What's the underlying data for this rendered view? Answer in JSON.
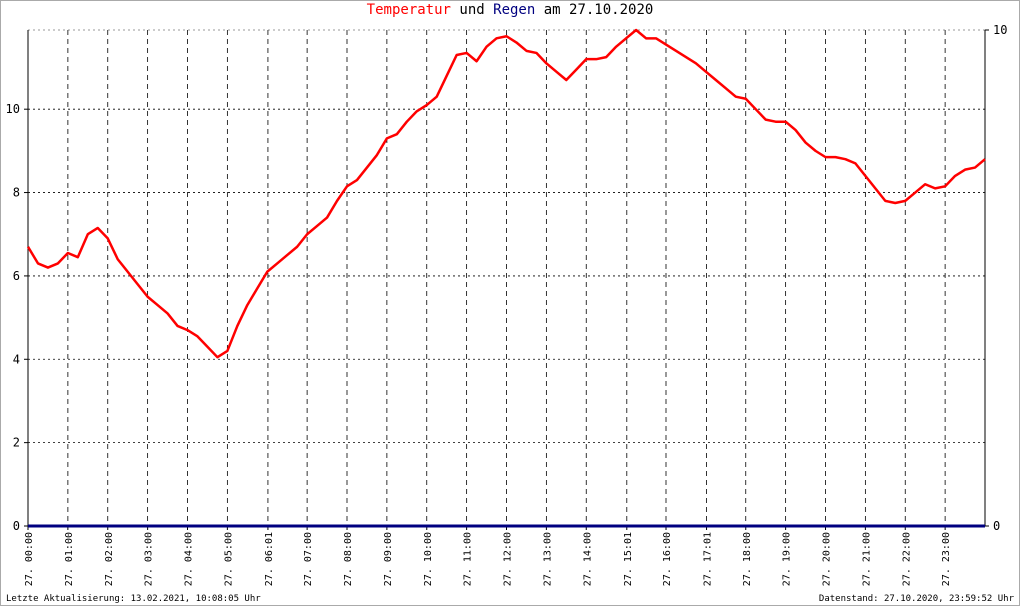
{
  "chart_data": {
    "type": "line",
    "title_parts": [
      "und",
      "am 27.10.2020"
    ],
    "footer_left": "Letzte Aktualisierung: 13.02.2021, 10:08:05 Uhr",
    "footer_right": "Datenstand: 27.10.2020, 23:59:52 Uhr",
    "x": [
      0,
      0.25,
      0.5,
      0.75,
      1,
      1.25,
      1.5,
      1.75,
      2,
      2.25,
      2.5,
      2.75,
      3,
      3.25,
      3.5,
      3.75,
      4,
      4.25,
      4.5,
      4.75,
      5,
      5.25,
      5.5,
      5.75,
      6,
      6.25,
      6.5,
      6.75,
      7,
      7.25,
      7.5,
      7.75,
      8,
      8.25,
      8.5,
      8.75,
      9,
      9.25,
      9.5,
      9.75,
      10,
      10.25,
      10.5,
      10.75,
      11,
      11.25,
      11.5,
      11.75,
      12,
      12.25,
      12.5,
      12.75,
      13,
      13.25,
      13.5,
      13.75,
      14,
      14.25,
      14.5,
      14.75,
      15,
      15.25,
      15.5,
      15.75,
      16,
      16.25,
      16.5,
      16.75,
      17,
      17.25,
      17.5,
      17.75,
      18,
      18.25,
      18.5,
      18.75,
      19,
      19.25,
      19.5,
      19.75,
      20,
      20.25,
      20.5,
      20.75,
      21,
      21.25,
      21.5,
      21.75,
      22,
      22.25,
      22.5,
      22.75,
      23,
      23.25,
      23.5,
      23.75,
      24
    ],
    "series": [
      {
        "name": "Temperatur",
        "color": "#ff0000",
        "values": [
          6.7,
          6.3,
          6.2,
          6.3,
          6.55,
          6.45,
          7.0,
          7.15,
          6.9,
          6.4,
          6.1,
          5.8,
          5.5,
          5.3,
          5.1,
          4.8,
          4.7,
          4.55,
          4.3,
          4.05,
          4.2,
          4.8,
          5.3,
          5.7,
          6.1,
          6.3,
          6.5,
          6.7,
          7.0,
          7.2,
          7.4,
          7.8,
          8.15,
          8.3,
          8.6,
          8.9,
          9.3,
          9.4,
          9.7,
          9.95,
          10.1,
          10.3,
          10.8,
          11.3,
          11.35,
          11.15,
          11.5,
          11.7,
          11.75,
          11.6,
          11.4,
          11.35,
          11.1,
          10.9,
          10.7,
          10.95,
          11.2,
          11.2,
          11.25,
          11.5,
          11.7,
          11.9,
          11.7,
          11.7,
          11.55,
          11.4,
          11.25,
          11.1,
          10.9,
          10.7,
          10.5,
          10.3,
          10.25,
          10.0,
          9.75,
          9.7,
          9.7,
          9.5,
          9.2,
          9.0,
          8.85,
          8.85,
          8.8,
          8.7,
          8.4,
          8.1,
          7.8,
          7.75,
          7.8,
          8.0,
          8.2,
          8.1,
          8.15,
          8.4,
          8.55,
          8.6,
          8.8
        ]
      },
      {
        "name": "Regen",
        "color": "#000080",
        "axis": "y2",
        "values": [
          0,
          0,
          0,
          0,
          0,
          0,
          0,
          0,
          0,
          0,
          0,
          0,
          0,
          0,
          0,
          0,
          0,
          0,
          0,
          0,
          0,
          0,
          0,
          0,
          0,
          0,
          0,
          0,
          0,
          0,
          0,
          0,
          0,
          0,
          0,
          0,
          0,
          0,
          0,
          0,
          0,
          0,
          0,
          0,
          0,
          0,
          0,
          0,
          0,
          0,
          0,
          0,
          0,
          0,
          0,
          0,
          0,
          0,
          0,
          0,
          0,
          0,
          0,
          0,
          0,
          0,
          0,
          0,
          0,
          0,
          0,
          0,
          0,
          0,
          0,
          0,
          0,
          0,
          0,
          0,
          0,
          0,
          0,
          0,
          0,
          0,
          0,
          0,
          0,
          0,
          0,
          0,
          0,
          0,
          0,
          0,
          0
        ]
      }
    ],
    "xlim": [
      0,
      24
    ],
    "xticks": [
      {
        "value": 0,
        "label": "27. 00:00"
      },
      {
        "value": 1,
        "label": "27. 01:00"
      },
      {
        "value": 2,
        "label": "27. 02:00"
      },
      {
        "value": 3,
        "label": "27. 03:00"
      },
      {
        "value": 4,
        "label": "27. 04:00"
      },
      {
        "value": 5,
        "label": "27. 05:00"
      },
      {
        "value": 6.017,
        "label": "27. 06:01"
      },
      {
        "value": 7,
        "label": "27. 07:00"
      },
      {
        "value": 8,
        "label": "27. 08:00"
      },
      {
        "value": 9,
        "label": "27. 09:00"
      },
      {
        "value": 10,
        "label": "27. 10:00"
      },
      {
        "value": 11,
        "label": "27. 11:00"
      },
      {
        "value": 12,
        "label": "27. 12:00"
      },
      {
        "value": 13,
        "label": "27. 13:00"
      },
      {
        "value": 14,
        "label": "27. 14:00"
      },
      {
        "value": 15.017,
        "label": "27. 15:01"
      },
      {
        "value": 16,
        "label": "27. 16:00"
      },
      {
        "value": 17.017,
        "label": "27. 17:01"
      },
      {
        "value": 18,
        "label": "27. 18:00"
      },
      {
        "value": 19,
        "label": "27. 19:00"
      },
      {
        "value": 20,
        "label": "27. 20:00"
      },
      {
        "value": 21,
        "label": "27. 21:00"
      },
      {
        "value": 22,
        "label": "27. 22:00"
      },
      {
        "value": 23,
        "label": "27. 23:00"
      }
    ],
    "ylim": [
      0,
      11.9
    ],
    "yticks": [
      0,
      2,
      4,
      6,
      8,
      10
    ],
    "y2lim": [
      0,
      10
    ],
    "y2ticks": [
      0,
      10
    ],
    "grid": true
  }
}
